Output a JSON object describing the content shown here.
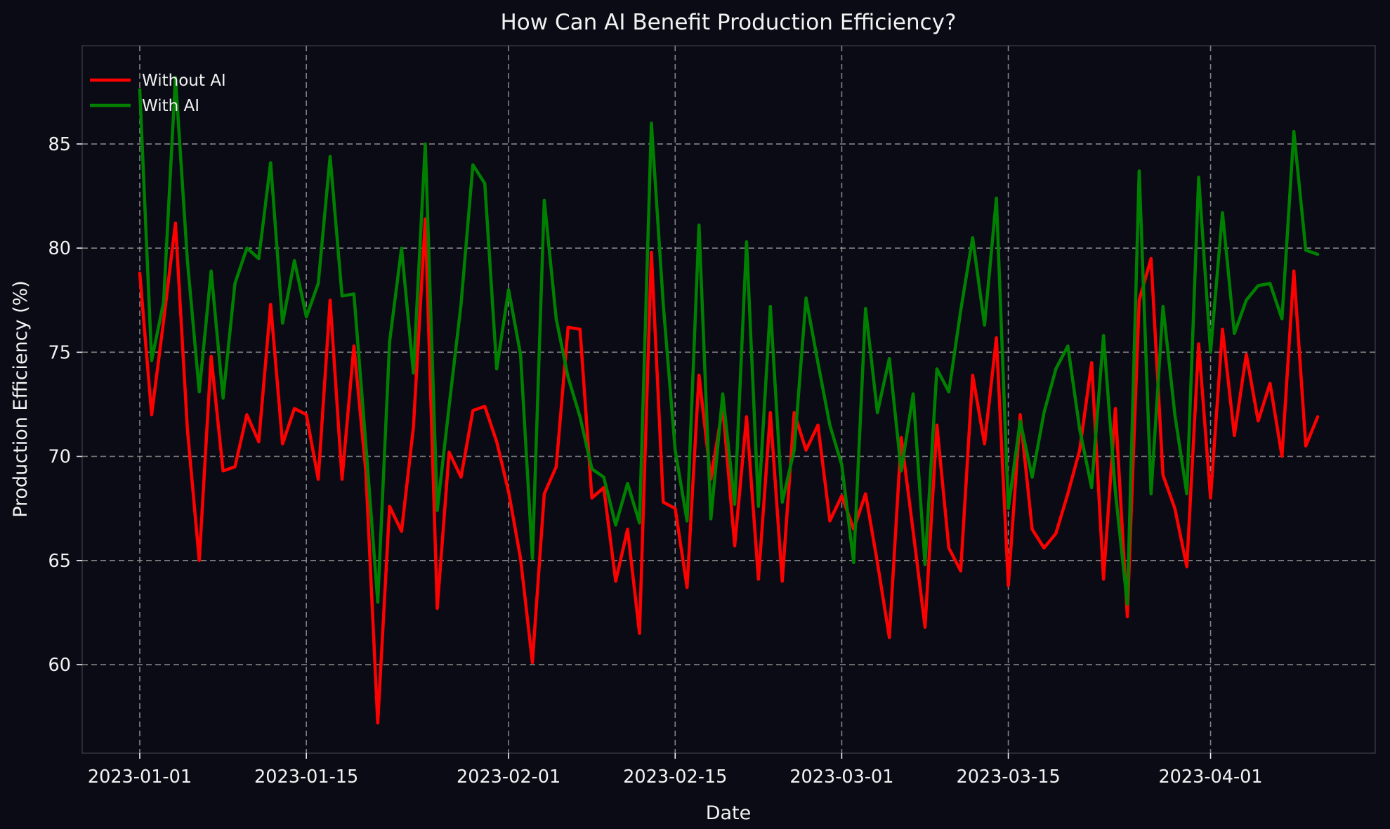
{
  "title": "How Can AI Benefit Production Efficiency?",
  "axes": {
    "xlabel": "Date",
    "ylabel": "Production Efficiency (%)"
  },
  "legend": {
    "position": "upper left",
    "items": [
      {
        "label": "Without AI",
        "color": "#ff0000"
      },
      {
        "label": "With AI",
        "color": "#008000"
      }
    ]
  },
  "colors": {
    "background": "#0a0b15",
    "grid": "#9a9a9a",
    "text": "#f2f2f2",
    "spine": "#35353f",
    "without_ai": "#ff0000",
    "with_ai": "#008000"
  },
  "chart_data": {
    "type": "line",
    "title": "How Can AI Benefit Production Efficiency?",
    "xlabel": "Date",
    "ylabel": "Production Efficiency (%)",
    "grid": true,
    "legend_position": "upper left",
    "ylim": [
      55.75,
      89.72
    ],
    "yticks": [
      60,
      65,
      70,
      75,
      80,
      85
    ],
    "xticks": [
      {
        "label": "2023-01-01",
        "day": 0
      },
      {
        "label": "2023-01-15",
        "day": 14
      },
      {
        "label": "2023-02-01",
        "day": 31
      },
      {
        "label": "2023-02-15",
        "day": 45
      },
      {
        "label": "2023-03-01",
        "day": 59
      },
      {
        "label": "2023-03-15",
        "day": 73
      },
      {
        "label": "2023-04-01",
        "day": 90
      }
    ],
    "x": [
      "2023-01-01",
      "2023-01-02",
      "2023-01-03",
      "2023-01-04",
      "2023-01-05",
      "2023-01-06",
      "2023-01-07",
      "2023-01-08",
      "2023-01-09",
      "2023-01-10",
      "2023-01-11",
      "2023-01-12",
      "2023-01-13",
      "2023-01-14",
      "2023-01-15",
      "2023-01-16",
      "2023-01-17",
      "2023-01-18",
      "2023-01-19",
      "2023-01-20",
      "2023-01-21",
      "2023-01-22",
      "2023-01-23",
      "2023-01-24",
      "2023-01-25",
      "2023-01-26",
      "2023-01-27",
      "2023-01-28",
      "2023-01-29",
      "2023-01-30",
      "2023-01-31",
      "2023-02-01",
      "2023-02-02",
      "2023-02-03",
      "2023-02-04",
      "2023-02-05",
      "2023-02-06",
      "2023-02-07",
      "2023-02-08",
      "2023-02-09",
      "2023-02-10",
      "2023-02-11",
      "2023-02-12",
      "2023-02-13",
      "2023-02-14",
      "2023-02-15",
      "2023-02-16",
      "2023-02-17",
      "2023-02-18",
      "2023-02-19",
      "2023-02-20",
      "2023-02-21",
      "2023-02-22",
      "2023-02-23",
      "2023-02-24",
      "2023-02-25",
      "2023-02-26",
      "2023-02-27",
      "2023-02-28",
      "2023-03-01",
      "2023-03-02",
      "2023-03-03",
      "2023-03-04",
      "2023-03-05",
      "2023-03-06",
      "2023-03-07",
      "2023-03-08",
      "2023-03-09",
      "2023-03-10",
      "2023-03-11",
      "2023-03-12",
      "2023-03-13",
      "2023-03-14",
      "2023-03-15",
      "2023-03-16",
      "2023-03-17",
      "2023-03-18",
      "2023-03-19",
      "2023-03-20",
      "2023-03-21",
      "2023-03-22",
      "2023-03-23",
      "2023-03-24",
      "2023-03-25",
      "2023-03-26",
      "2023-03-27",
      "2023-03-28",
      "2023-03-29",
      "2023-03-30",
      "2023-03-31",
      "2023-04-01",
      "2023-04-02",
      "2023-04-03",
      "2023-04-04",
      "2023-04-05",
      "2023-04-06",
      "2023-04-07",
      "2023-04-08",
      "2023-04-09",
      "2023-04-10"
    ],
    "series": [
      {
        "name": "Without AI",
        "color": "#ff0000",
        "values": [
          78.8,
          72.0,
          76.5,
          81.2,
          71.3,
          65.0,
          74.8,
          69.3,
          69.5,
          72.0,
          70.7,
          77.3,
          70.6,
          72.3,
          72.0,
          68.9,
          77.5,
          68.9,
          75.3,
          69.3,
          57.2,
          67.6,
          66.4,
          71.4,
          81.4,
          62.7,
          70.2,
          69.0,
          72.2,
          72.4,
          70.7,
          68.3,
          65.1,
          60.1,
          68.2,
          69.5,
          76.2,
          76.1,
          68.0,
          68.5,
          64.0,
          66.5,
          61.5,
          79.8,
          67.8,
          67.5,
          63.7,
          73.9,
          68.9,
          72.4,
          65.7,
          71.9,
          64.1,
          72.1,
          64.0,
          72.1,
          70.3,
          71.5,
          66.9,
          68.1,
          66.5,
          68.2,
          64.9,
          61.3,
          70.9,
          66.4,
          61.8,
          71.5,
          65.6,
          64.5,
          73.9,
          70.6,
          75.7,
          63.8,
          72.0,
          66.5,
          65.6,
          66.3,
          68.2,
          70.3,
          74.5,
          64.1,
          72.3,
          62.3,
          77.5,
          79.5,
          69.1,
          67.5,
          64.7,
          75.4,
          68.0,
          76.1,
          71.0,
          74.9,
          71.7,
          73.5,
          70.0,
          78.9,
          70.5,
          71.9
        ]
      },
      {
        "name": "With AI",
        "color": "#008000",
        "values": [
          87.6,
          74.6,
          77.4,
          88.2,
          79.4,
          73.1,
          78.9,
          72.8,
          78.3,
          80.0,
          79.5,
          84.1,
          76.4,
          79.4,
          76.7,
          78.3,
          84.4,
          77.7,
          77.8,
          70.6,
          63.0,
          75.5,
          80.0,
          74.0,
          85.0,
          67.4,
          72.4,
          77.3,
          84.0,
          83.1,
          74.2,
          78.0,
          74.9,
          65.1,
          82.3,
          76.6,
          73.8,
          71.9,
          69.4,
          69.0,
          66.7,
          68.7,
          66.8,
          86.0,
          77.3,
          70.3,
          66.9,
          81.1,
          67.0,
          73.0,
          67.7,
          80.3,
          67.6,
          77.2,
          67.8,
          70.3,
          77.6,
          74.5,
          71.5,
          69.6,
          64.9,
          77.1,
          72.1,
          74.7,
          69.3,
          73.0,
          64.8,
          74.2,
          73.1,
          77.0,
          80.5,
          76.3,
          82.4,
          67.5,
          71.7,
          69.0,
          72.1,
          74.2,
          75.3,
          71.3,
          68.5,
          75.8,
          68.3,
          62.9,
          83.7,
          68.2,
          77.2,
          72.0,
          68.2,
          83.4,
          75.0,
          81.7,
          75.9,
          77.5,
          78.2,
          78.3,
          76.6,
          85.6,
          79.9,
          79.7
        ]
      }
    ]
  }
}
